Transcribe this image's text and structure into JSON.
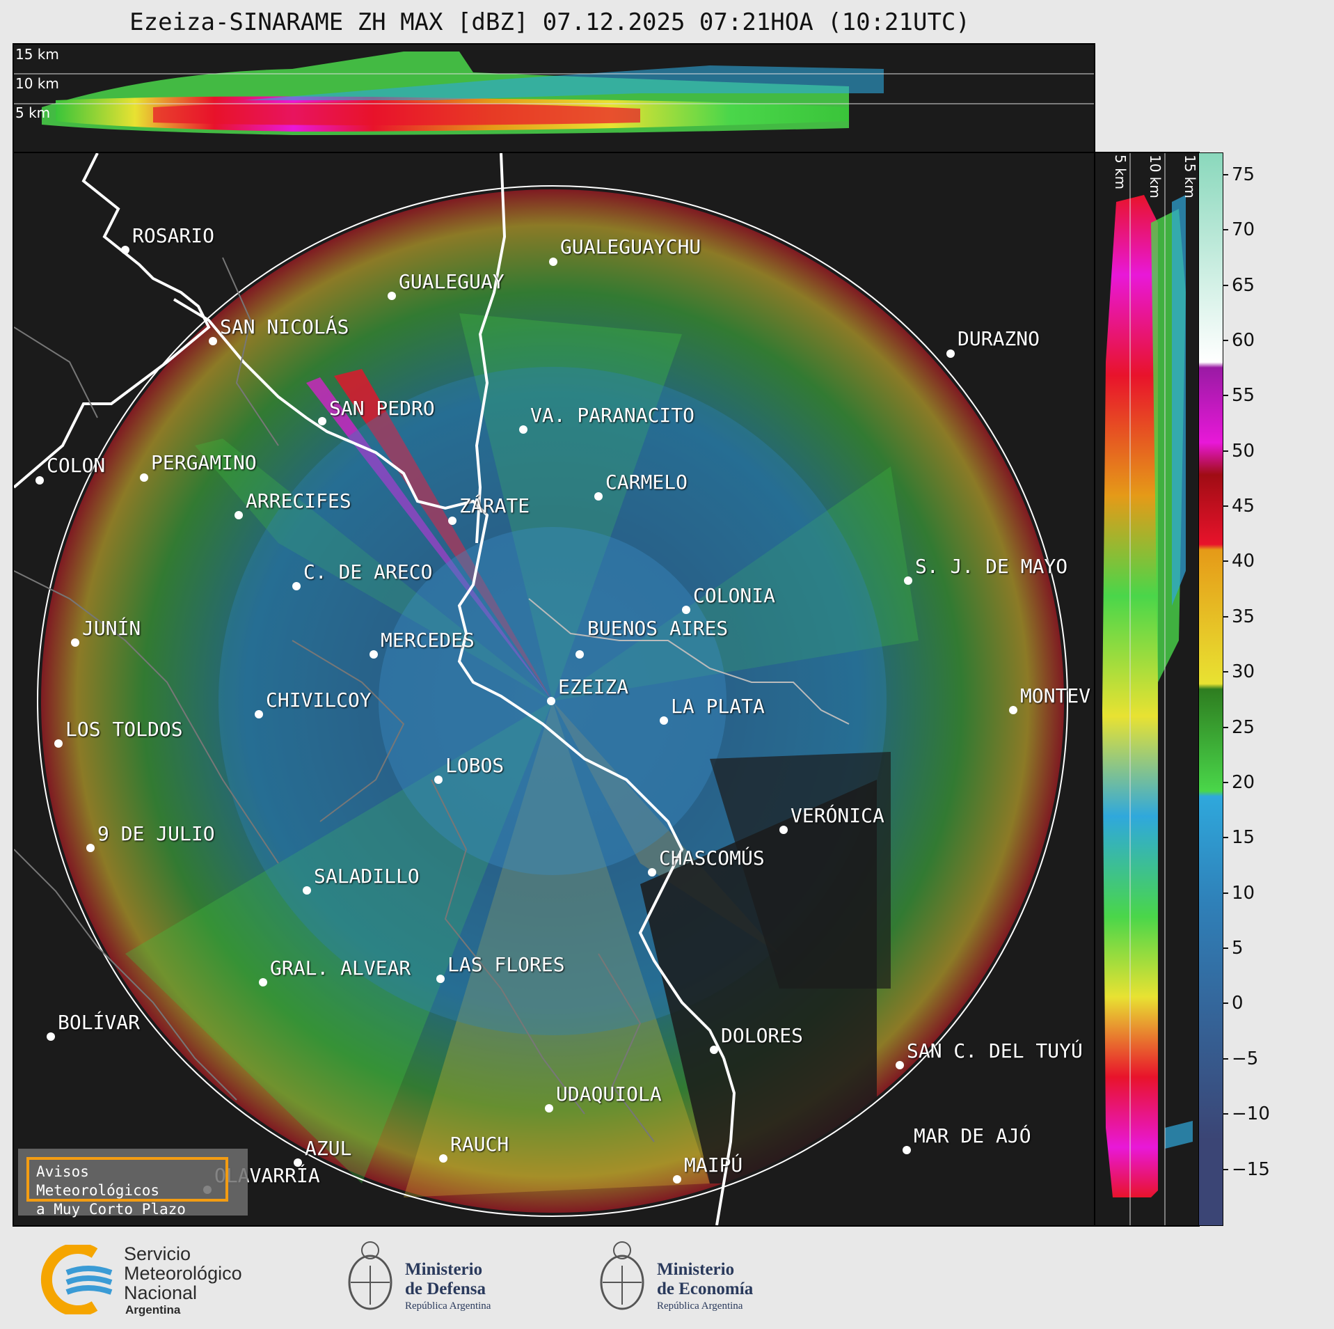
{
  "title": "Ezeiza-SINARAME ZH MAX [dBZ] 07.12.2025 07:21HOA (10:21UTC)",
  "top_strip_labels": [
    "15 km",
    "10 km",
    "5 km"
  ],
  "right_strip_labels": [
    "5 km",
    "10 km",
    "15 km"
  ],
  "colorbar": {
    "ticks": [
      "75",
      "70",
      "65",
      "60",
      "55",
      "50",
      "45",
      "40",
      "35",
      "30",
      "25",
      "20",
      "15",
      "10",
      "5",
      "0",
      "−5",
      "−10",
      "−15"
    ],
    "range": [
      -20,
      77
    ],
    "colors": {
      "blue_low": "#3b4575",
      "blue_mid": "#2f80b8",
      "cyan": "#2fa8dc",
      "green": "#4ad64a",
      "dark_green": "#2e7d20",
      "yellow": "#e8e232",
      "orange": "#e59a18",
      "red": "#e8132b",
      "dark_red": "#a00c14",
      "magenta": "#e818d8",
      "purple": "#9a1aa4",
      "white": "#ffffff",
      "mint": "#8ad8bc"
    }
  },
  "cities": [
    {
      "name": "ROSARIO"
    },
    {
      "name": "GUALEGUAYCHU"
    },
    {
      "name": "GUALEGUAY"
    },
    {
      "name": "SAN NICOLÁS"
    },
    {
      "name": "DURAZNO"
    },
    {
      "name": "SAN PEDRO"
    },
    {
      "name": "VA. PARANACITO"
    },
    {
      "name": "COLON"
    },
    {
      "name": "PERGAMINO"
    },
    {
      "name": "CARMELO"
    },
    {
      "name": "ARRECIFES"
    },
    {
      "name": "ZÁRATE"
    },
    {
      "name": "S. J. DE MAYO"
    },
    {
      "name": "C. DE ARECO"
    },
    {
      "name": "COLONIA"
    },
    {
      "name": "BUENOS AIRES"
    },
    {
      "name": "JUNÍN"
    },
    {
      "name": "MERCEDES"
    },
    {
      "name": "EZEIZA"
    },
    {
      "name": "MONTEV"
    },
    {
      "name": "CHIVILCOY"
    },
    {
      "name": "LA PLATA"
    },
    {
      "name": "LOS TOLDOS"
    },
    {
      "name": "LOBOS"
    },
    {
      "name": "VERÓNICA"
    },
    {
      "name": "9 DE JULIO"
    },
    {
      "name": "CHASCOMÚS"
    },
    {
      "name": "SALADILLO"
    },
    {
      "name": "GRAL. ALVEAR"
    },
    {
      "name": "LAS FLORES"
    },
    {
      "name": "BOLÍVAR"
    },
    {
      "name": "DOLORES"
    },
    {
      "name": "SAN C. DEL TUYÚ"
    },
    {
      "name": "UDAQUIOLA"
    },
    {
      "name": "MAR DE AJÓ"
    },
    {
      "name": "AZUL"
    },
    {
      "name": "RAUCH"
    },
    {
      "name": "OLAVARRÍA"
    },
    {
      "name": "MAIPÚ"
    }
  ],
  "avisos": {
    "line1": "Avisos Meteorológicos",
    "line2": "a Muy Corto Plazo"
  },
  "footer": {
    "smn_line1": "Servicio",
    "smn_line2": "Meteorológico",
    "smn_line3": "Nacional",
    "smn_line4": "Argentina",
    "defensa_line1": "Ministerio",
    "defensa_line2": "de Defensa",
    "defensa_sub": "República Argentina",
    "economia_line1": "Ministerio",
    "economia_line2": "de Economía",
    "economia_sub": "República Argentina"
  }
}
